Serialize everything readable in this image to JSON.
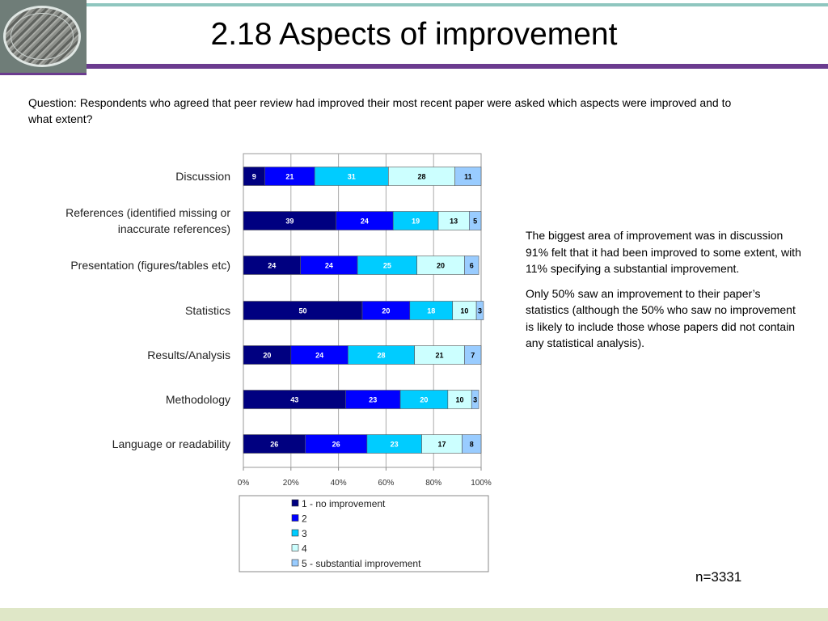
{
  "slide": {
    "title": "2.18 Aspects of improvement",
    "question": "Question: Respondents who agreed that peer review had improved their most recent paper were asked which aspects were improved and to what extent?",
    "paragraphs": [
      "The biggest area of improvement was in discussion 91% felt that it had been improved to some extent, with 11% specifying a substantial improvement.",
      "Only 50% saw an improvement to their paper’s statistics (although the 50% who saw no improvement is likely to include those whose papers did not contain any statistical analysis)."
    ],
    "sample_size": "n=3331"
  },
  "chart_data": {
    "type": "bar",
    "orientation": "horizontal",
    "stacked": true,
    "percent_stacked": true,
    "categories": [
      [
        "Discussion"
      ],
      [
        "References (identified missing or",
        "inaccurate references)"
      ],
      [
        "Presentation (figures/tables etc)"
      ],
      [
        "Statistics"
      ],
      [
        "Results/Analysis"
      ],
      [
        "Methodology"
      ],
      [
        "Language or readability"
      ]
    ],
    "series": [
      {
        "name": "1 - no improvement",
        "color": "#000080",
        "label_color": "#ffffff",
        "values": [
          9,
          39,
          24,
          50,
          20,
          43,
          26
        ]
      },
      {
        "name": "2",
        "color": "#0000ff",
        "label_color": "#ffffff",
        "values": [
          21,
          24,
          24,
          20,
          24,
          23,
          26
        ]
      },
      {
        "name": "3",
        "color": "#00ccff",
        "label_color": "#ffffff",
        "values": [
          31,
          19,
          25,
          18,
          28,
          20,
          23
        ]
      },
      {
        "name": "4",
        "color": "#ccffff",
        "label_color": "#000000",
        "values": [
          28,
          13,
          20,
          10,
          21,
          10,
          17
        ]
      },
      {
        "name": "5 - substantial improvement",
        "color": "#99ccff",
        "label_color": "#000000",
        "values": [
          11,
          5,
          6,
          3,
          7,
          3,
          8
        ]
      }
    ],
    "x_ticks": [
      "0%",
      "20%",
      "40%",
      "60%",
      "80%",
      "100%"
    ],
    "xlim": [
      0,
      100
    ],
    "grid": true,
    "legend_position": "bottom"
  }
}
